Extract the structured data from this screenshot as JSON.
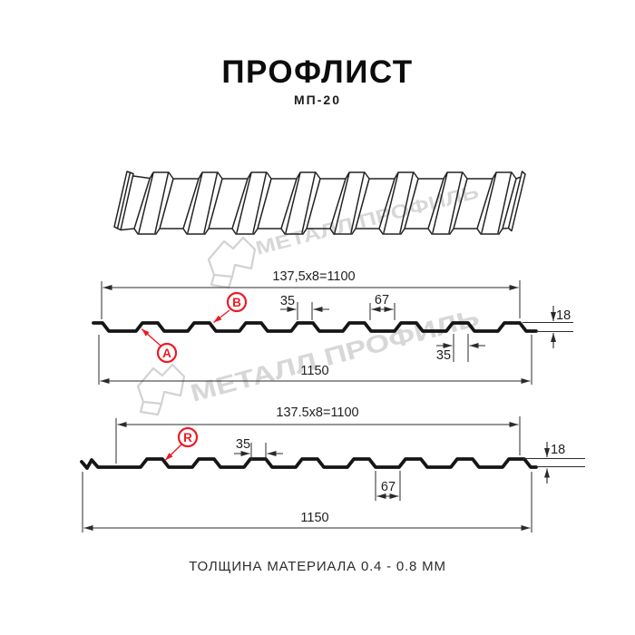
{
  "header": {
    "title": "ПРОФЛИСТ",
    "subtitle": "МП-20"
  },
  "watermark": {
    "brand_text": "МЕТАЛЛ ПРОФИЛЬ"
  },
  "profile_top": {
    "dim_coverage": "137,5x8=1100",
    "dim_rib_top": "35",
    "dim_valley": "67",
    "dim_height": "18",
    "dim_rib_bottom": "35",
    "dim_overall": "1150",
    "callout_a": "А",
    "callout_b": "В"
  },
  "profile_bottom": {
    "dim_coverage": "137.5x8=1100",
    "dim_rib_top": "35",
    "dim_valley": "67",
    "dim_height": "18",
    "dim_overall": "1150",
    "callout_r": "R"
  },
  "footer": {
    "note": "ТОЛЩИНА МАТЕРИАЛА 0.4 - 0.8 ММ"
  },
  "colors": {
    "accent_red": "#ec1c24",
    "line": "#1e1e1e",
    "watermark": "#d7d7d7"
  }
}
